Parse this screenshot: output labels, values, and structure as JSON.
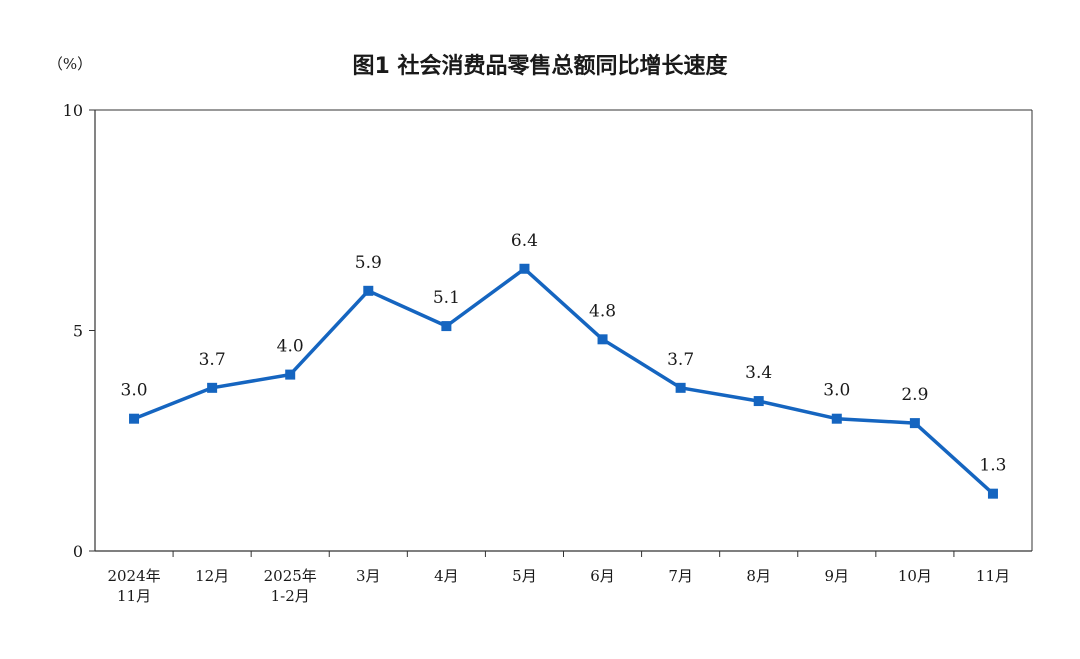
{
  "chart_data": {
    "type": "line",
    "title": "图1  社会消费品零售总额同比增长速度",
    "unit_label": "（%）",
    "xlabel": "",
    "ylabel": "",
    "ylim": [
      0,
      10
    ],
    "yticks": [
      "0",
      "5",
      "10"
    ],
    "ytick_values": [
      0,
      5,
      10
    ],
    "categories": [
      [
        "2024年",
        "11月"
      ],
      [
        "12月"
      ],
      [
        "2025年",
        "1-2月"
      ],
      [
        "3月"
      ],
      [
        "4月"
      ],
      [
        "5月"
      ],
      [
        "6月"
      ],
      [
        "7月"
      ],
      [
        "8月"
      ],
      [
        "9月"
      ],
      [
        "10月"
      ],
      [
        "11月"
      ]
    ],
    "values": [
      3.0,
      3.7,
      4.0,
      5.9,
      5.1,
      6.4,
      4.8,
      3.7,
      3.4,
      3.0,
      2.9,
      1.3
    ],
    "data_labels": [
      "3.0",
      "3.7",
      "4.0",
      "5.9",
      "5.1",
      "6.4",
      "4.8",
      "3.7",
      "3.4",
      "3.0",
      "2.9",
      "1.3"
    ],
    "grid": false,
    "legend": "none",
    "colors": {
      "line": "#1565c0",
      "marker": "#1565c0",
      "axis": "#333333",
      "frame": "#333333"
    }
  }
}
